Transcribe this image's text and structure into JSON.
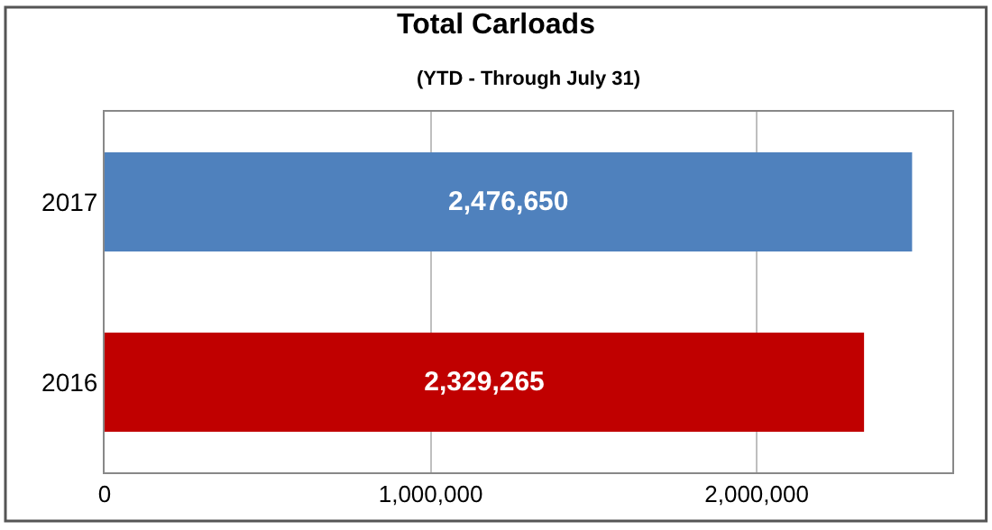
{
  "chart_data": {
    "type": "bar",
    "orientation": "horizontal",
    "title": "Total Carloads",
    "subtitle": "(YTD - Through July 31)",
    "categories": [
      "2017",
      "2016"
    ],
    "values": [
      2476650,
      2329265
    ],
    "colors": [
      "#4f81bd",
      "#c00000"
    ],
    "value_labels": [
      "2,476,650",
      "2,329,265"
    ],
    "xlim": [
      0,
      2600000
    ],
    "xticks": [
      0,
      {
        "value": 1000000,
        "label": "1,000,000"
      },
      {
        "value": 2000000,
        "label": "2,000,000"
      }
    ],
    "grid": "x"
  }
}
